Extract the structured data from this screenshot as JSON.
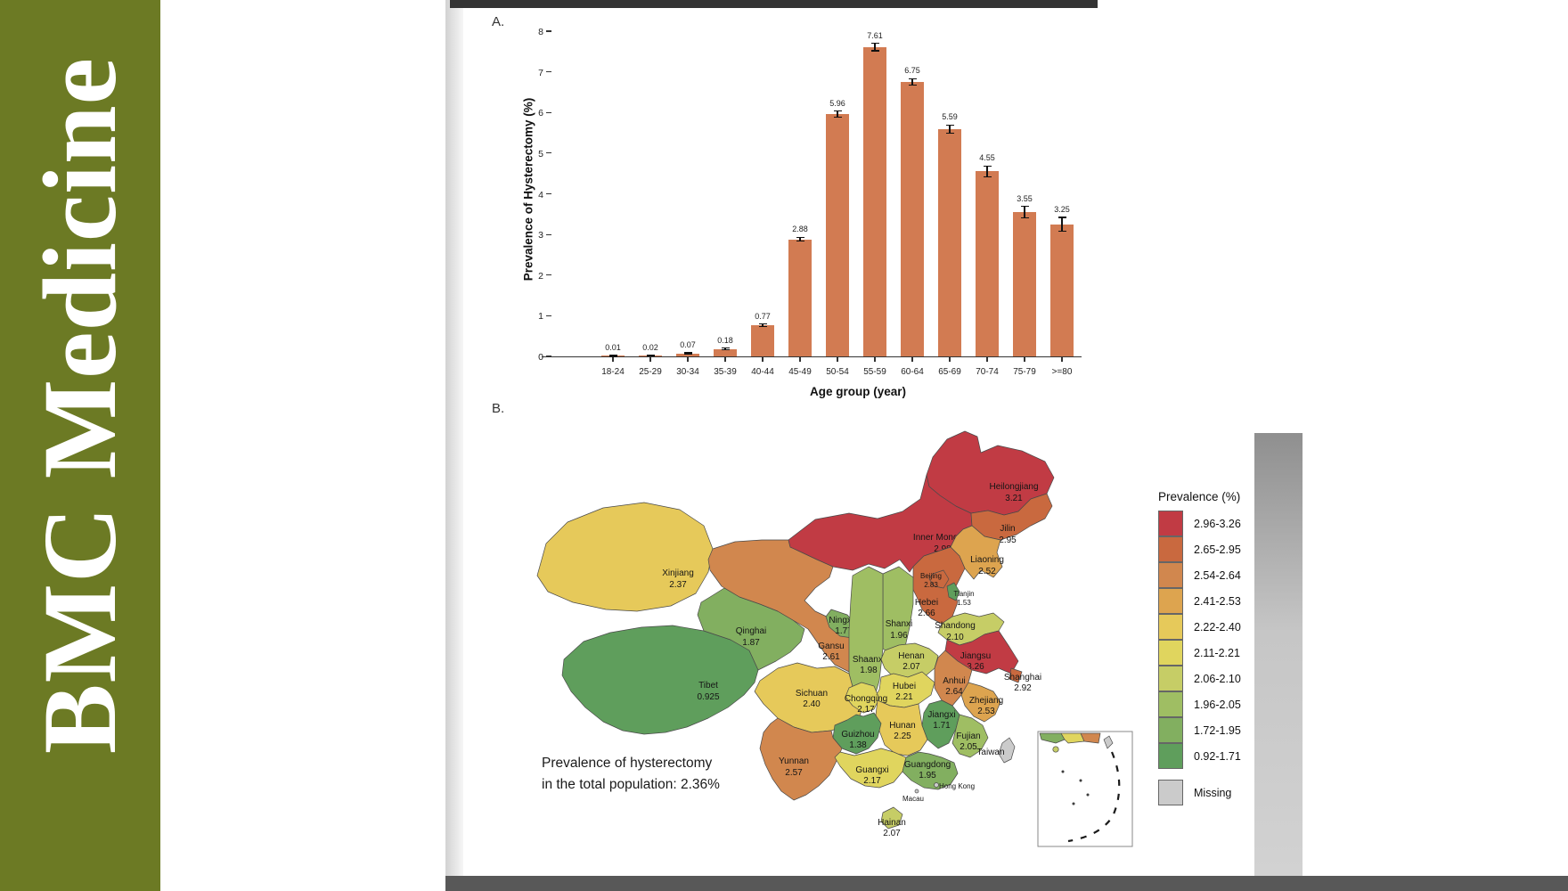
{
  "brand": {
    "text": "BMC Medicine",
    "bg_color": "#6C7A24"
  },
  "panels": {
    "a": "A.",
    "b": "B."
  },
  "chart_data": [
    {
      "type": "bar",
      "title": "",
      "categories": [
        "18-24",
        "25-29",
        "30-34",
        "35-39",
        "40-44",
        "45-49",
        "50-54",
        "55-59",
        "60-64",
        "65-69",
        "70-74",
        "75-79",
        ">=80"
      ],
      "values": [
        0.01,
        0.02,
        0.07,
        0.18,
        0.77,
        2.88,
        5.96,
        7.61,
        6.75,
        5.59,
        4.55,
        3.55,
        3.25
      ],
      "errors": [
        0.01,
        0.01,
        0.02,
        0.02,
        0.03,
        0.05,
        0.07,
        0.09,
        0.08,
        0.1,
        0.13,
        0.14,
        0.17
      ],
      "ylabel": "Prevalence of Hysterectomy (%)",
      "xlabel": "Age group (year)",
      "ylim": [
        0,
        8
      ],
      "yticks": [
        0,
        1,
        2,
        3,
        4,
        5,
        6,
        7,
        8
      ],
      "bar_color": "#D27B52",
      "grid": false,
      "legend_position": "none"
    },
    {
      "type": "choropleth",
      "region": "China provinces",
      "legend_title": "Prevalence (%)",
      "annotation_line1": "Prevalence of hysterectomy",
      "annotation_line2": "in the total population: 2.36%",
      "legend_bands": [
        {
          "range": "2.96-3.26",
          "color": "#C13B44"
        },
        {
          "range": "2.65-2.95",
          "color": "#C9693F"
        },
        {
          "range": "2.54-2.64",
          "color": "#D1874E"
        },
        {
          "range": "2.41-2.53",
          "color": "#DDA44F"
        },
        {
          "range": "2.22-2.40",
          "color": "#E6C95A"
        },
        {
          "range": "2.11-2.21",
          "color": "#E0D55E"
        },
        {
          "range": "2.06-2.10",
          "color": "#C6CD66"
        },
        {
          "range": "1.96-2.05",
          "color": "#9FBE63"
        },
        {
          "range": "1.72-1.95",
          "color": "#82AF60"
        },
        {
          "range": "0.92-1.71",
          "color": "#5F9E5C"
        },
        {
          "range": "Missing",
          "color": "#CBCBCB"
        }
      ],
      "provinces": [
        {
          "name": "Heilongjiang",
          "value": "3.21",
          "color": "#C13B44"
        },
        {
          "name": "Jilin",
          "value": "2.95",
          "color": "#C9693F"
        },
        {
          "name": "Liaoning",
          "value": "2.52",
          "color": "#DDA44F"
        },
        {
          "name": "Inner Mongolia",
          "value": "2.98",
          "color": "#C13B44"
        },
        {
          "name": "Beijing",
          "value": "2.83",
          "color": "#C9693F"
        },
        {
          "name": "Tianjin",
          "value": "1.53",
          "color": "#5F9E5C"
        },
        {
          "name": "Hebei",
          "value": "2.66",
          "color": "#C9693F"
        },
        {
          "name": "Shanxi",
          "value": "1.96",
          "color": "#9FBE63"
        },
        {
          "name": "Shandong",
          "value": "2.10",
          "color": "#C6CD66"
        },
        {
          "name": "Ningxia",
          "value": "1.77",
          "color": "#82AF60"
        },
        {
          "name": "Qinghai",
          "value": "1.87",
          "color": "#82AF60"
        },
        {
          "name": "Gansu",
          "value": "2.61",
          "color": "#D1874E"
        },
        {
          "name": "Shaanxi",
          "value": "1.98",
          "color": "#9FBE63"
        },
        {
          "name": "Henan",
          "value": "2.07",
          "color": "#C6CD66"
        },
        {
          "name": "Jiangsu",
          "value": "3.26",
          "color": "#C13B44"
        },
        {
          "name": "Shanghai",
          "value": "2.92",
          "color": "#C9693F"
        },
        {
          "name": "Anhui",
          "value": "2.64",
          "color": "#D1874E"
        },
        {
          "name": "Hubei",
          "value": "2.21",
          "color": "#E0D55E"
        },
        {
          "name": "Zhejiang",
          "value": "2.53",
          "color": "#DDA44F"
        },
        {
          "name": "Xinjiang",
          "value": "2.37",
          "color": "#E6C95A"
        },
        {
          "name": "Tibet",
          "value": "0.925",
          "color": "#5F9E5C"
        },
        {
          "name": "Sichuan",
          "value": "2.40",
          "color": "#E6C95A"
        },
        {
          "name": "Chongqing",
          "value": "2.17",
          "color": "#E0D55E"
        },
        {
          "name": "Hunan",
          "value": "2.25",
          "color": "#E6C95A"
        },
        {
          "name": "Jiangxi",
          "value": "1.71",
          "color": "#5F9E5C"
        },
        {
          "name": "Guizhou",
          "value": "1.38",
          "color": "#5F9E5C"
        },
        {
          "name": "Fujian",
          "value": "2.05",
          "color": "#9FBE63"
        },
        {
          "name": "Yunnan",
          "value": "2.57",
          "color": "#D1874E"
        },
        {
          "name": "Guangxi",
          "value": "2.17",
          "color": "#E0D55E"
        },
        {
          "name": "Guangdong",
          "value": "1.95",
          "color": "#82AF60"
        },
        {
          "name": "Hainan",
          "value": "2.07",
          "color": "#C6CD66"
        },
        {
          "name": "Taiwan",
          "value": null,
          "color": "#CBCBCB"
        },
        {
          "name": "Hong Kong",
          "value": null,
          "color": "#CBCBCB"
        },
        {
          "name": "Macau",
          "value": null,
          "color": "#CBCBCB"
        }
      ]
    }
  ]
}
